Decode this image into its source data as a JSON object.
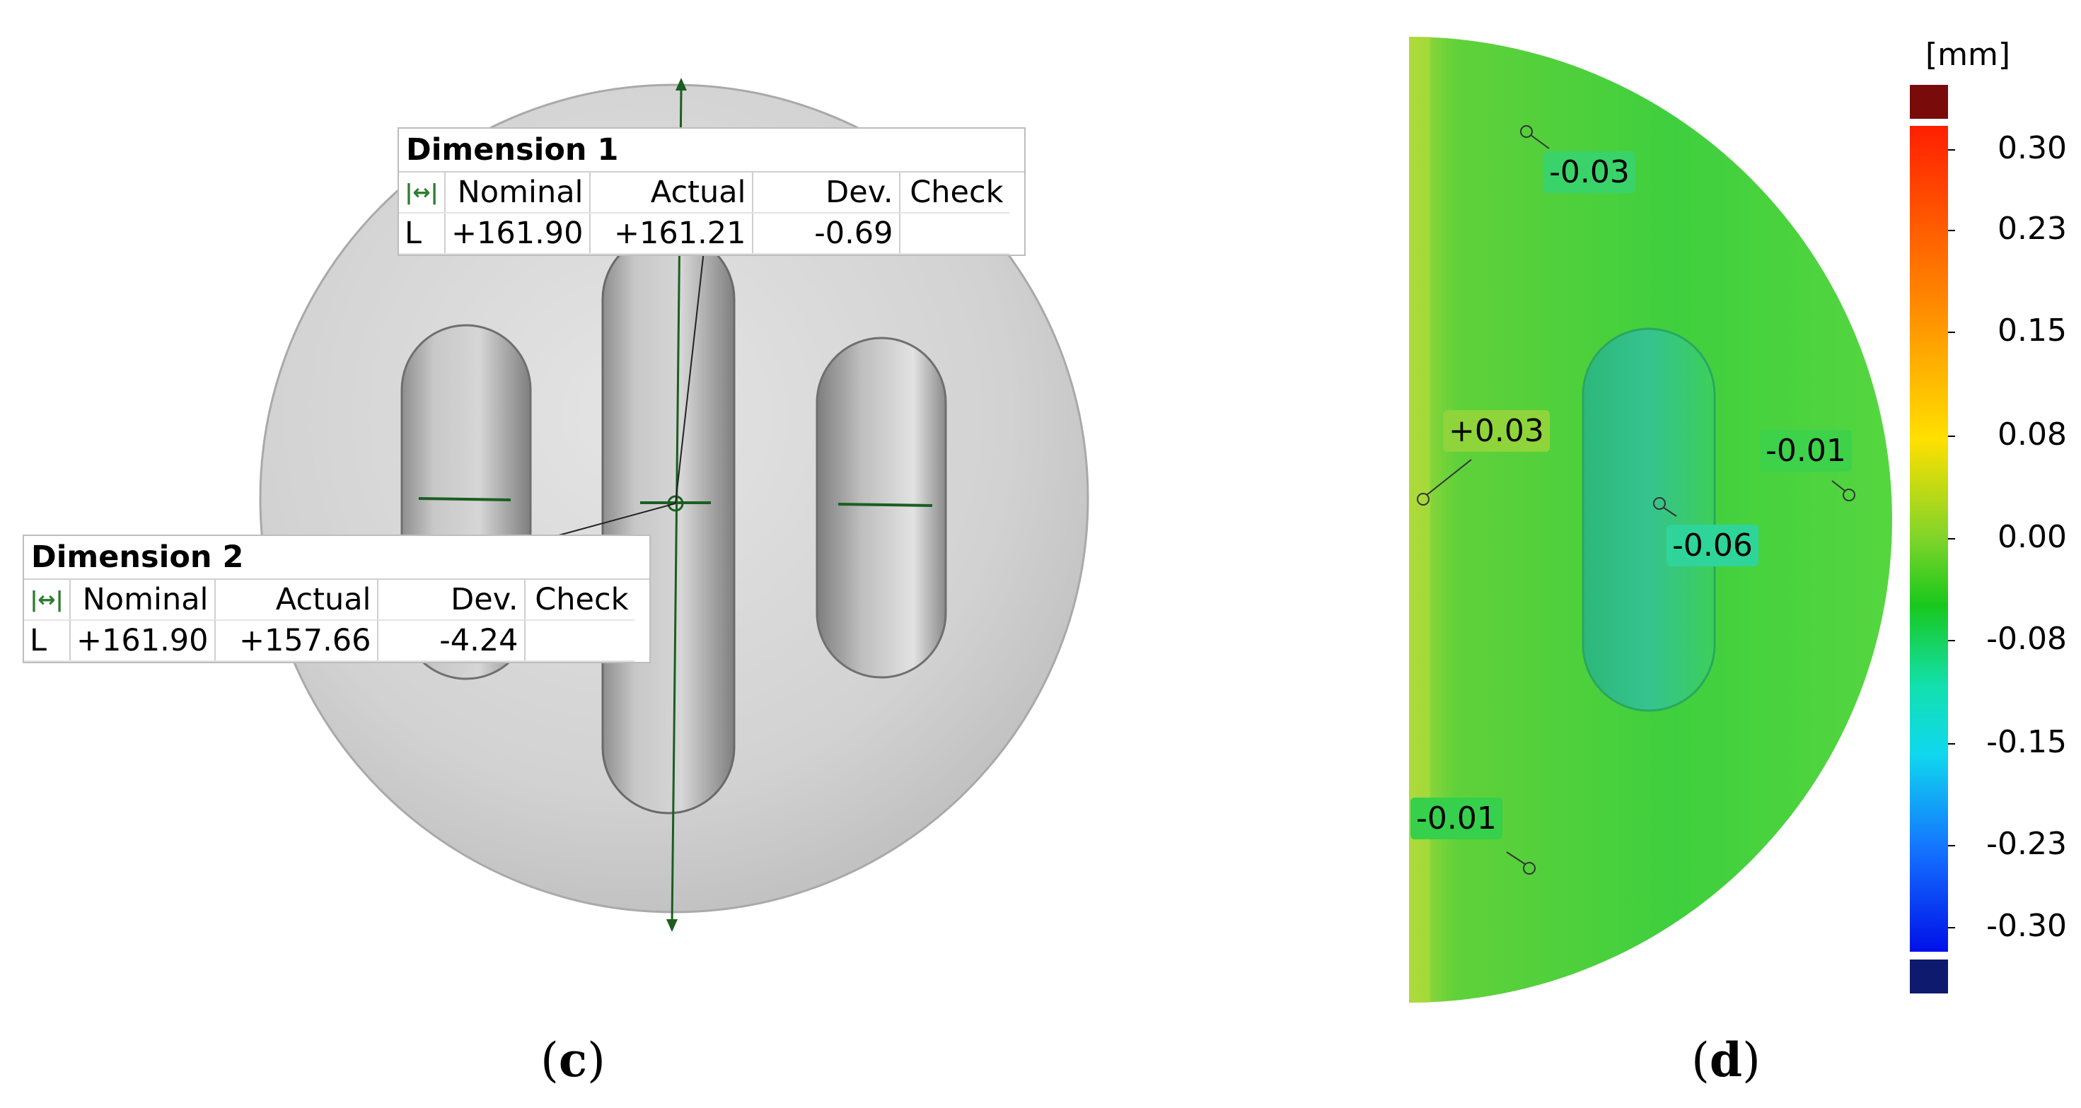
{
  "panel_c": {
    "label_open": "(",
    "label_letter": "c",
    "label_close": ")",
    "dimension1": {
      "title": "Dimension 1",
      "icon": "distance-icon",
      "headers": [
        "Nominal",
        "Actual",
        "Dev.",
        "Check"
      ],
      "row": {
        "type": "L",
        "nominal": "+161.90",
        "actual": "+161.21",
        "dev": "-0.69",
        "check": ""
      }
    },
    "dimension2": {
      "title": "Dimension 2",
      "icon": "distance-icon",
      "headers": [
        "Nominal",
        "Actual",
        "Dev.",
        "Check"
      ],
      "row": {
        "type": "L",
        "nominal": "+161.90",
        "actual": "+157.66",
        "dev": "-4.24",
        "check": ""
      }
    }
  },
  "panel_d": {
    "label_open": "(",
    "label_letter": "d",
    "label_close": ")",
    "unit": "[mm]",
    "colorbar_ticks": [
      "0.30",
      "0.23",
      "0.15",
      "0.08",
      "0.00",
      "-0.08",
      "-0.15",
      "-0.23",
      "-0.30"
    ],
    "colors": {
      "overflow_high": "#7a0b0b",
      "overflow_low": "#0d1a6e",
      "surface_main": "#47d43a",
      "measurement_line": "#1b5e20"
    },
    "deviation_labels": [
      {
        "value": "-0.03"
      },
      {
        "value": "+0.03"
      },
      {
        "value": "-0.01"
      },
      {
        "value": "-0.06"
      },
      {
        "value": "-0.01"
      }
    ]
  }
}
